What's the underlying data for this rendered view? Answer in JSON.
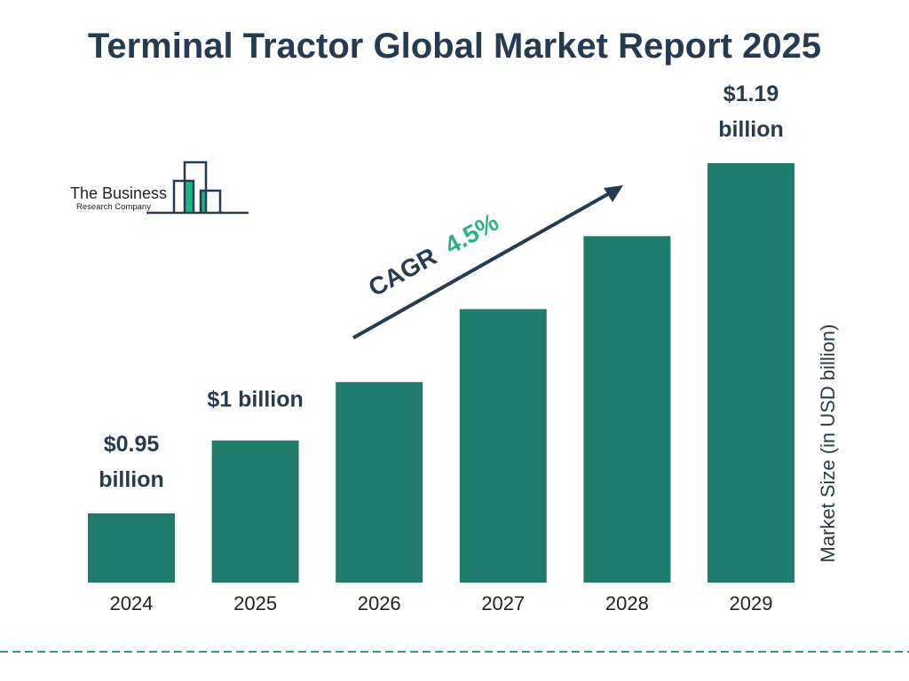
{
  "title": "Terminal Tractor Global Market Report 2025",
  "logo": {
    "line1": "The Business",
    "line2": "Research Company"
  },
  "colors": {
    "bar": "#217c6c",
    "title": "#263a50",
    "cagr_value": "#2db37f",
    "logo_green": "#1db587",
    "dash": "#2a9d8f"
  },
  "chart_data": {
    "type": "bar",
    "title": "Terminal Tractor Global Market Report 2025",
    "categories": [
      "2024",
      "2025",
      "2026",
      "2027",
      "2028",
      "2029"
    ],
    "values": [
      0.95,
      1.0,
      1.04,
      1.09,
      1.14,
      1.19
    ],
    "data_labels": [
      {
        "category": "2024",
        "lines": [
          "$0.95",
          "billion"
        ]
      },
      {
        "category": "2025",
        "lines": [
          "$1 billion"
        ]
      },
      {
        "category": "2029",
        "lines": [
          "$1.19",
          "billion"
        ]
      }
    ],
    "ylabel": "Market Size (in USD billion)",
    "xlabel": "",
    "grid": false,
    "annotation": {
      "label": "CAGR",
      "value": "4.5%"
    }
  }
}
